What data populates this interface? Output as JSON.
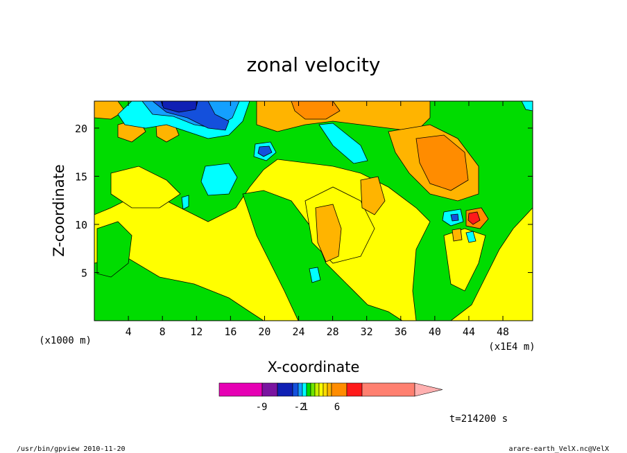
{
  "chart_data": {
    "type": "heatmap",
    "title": "zonal velocity",
    "xlabel": "X-coordinate",
    "ylabel": "Z-coordinate",
    "x_unit_note": "(x1E4 m)",
    "y_unit_note": "(x1000 m)",
    "xlim": [
      0,
      51.5
    ],
    "ylim": [
      0,
      22.8
    ],
    "x_ticks": [
      "4",
      "8",
      "12",
      "16",
      "20",
      "24",
      "28",
      "32",
      "36",
      "40",
      "44",
      "48"
    ],
    "y_ticks": [
      "5",
      "10",
      "15",
      "20"
    ],
    "colorbar": {
      "colors": [
        "#e600b4",
        "#7a14a0",
        "#1020b4",
        "#1450dc",
        "#14a0ff",
        "#00ffff",
        "#00dc00",
        "#6ee600",
        "#c8f000",
        "#ffff00",
        "#ffdc00",
        "#ffb400",
        "#ff8c00",
        "#ff1a1a",
        "#ff8070",
        "#ffb0b0"
      ],
      "labels": [
        "-9",
        "-2",
        "1",
        "6"
      ]
    },
    "time_label": "t=214200 s"
  },
  "footer": {
    "left": "/usr/bin/gpview   2010-11-20",
    "right": "arare-earth_VelX.nc@VelX"
  }
}
